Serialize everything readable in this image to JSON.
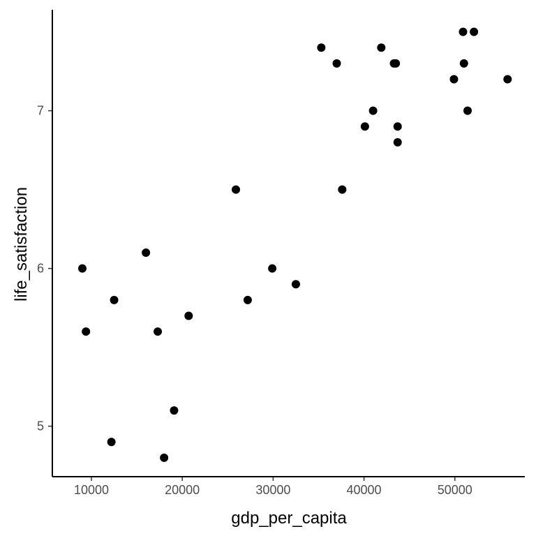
{
  "chart_data": {
    "type": "scatter",
    "xlabel": "gdp_per_capita",
    "ylabel": "life_satisfaction",
    "xlim": [
      5700,
      57700
    ],
    "ylim": [
      4.68,
      7.64
    ],
    "xticks": [
      10000,
      20000,
      30000,
      40000,
      50000
    ],
    "xtick_labels": [
      "10000",
      "20000",
      "30000",
      "40000",
      "50000"
    ],
    "yticks": [
      5,
      6,
      7
    ],
    "ytick_labels": [
      "5",
      "6",
      "7"
    ],
    "grid": false,
    "legend": "none",
    "point_color": "#000000",
    "points": [
      {
        "x": 9000,
        "y": 6.0
      },
      {
        "x": 9400,
        "y": 5.6
      },
      {
        "x": 12200,
        "y": 4.9
      },
      {
        "x": 12500,
        "y": 5.8
      },
      {
        "x": 16000,
        "y": 6.1
      },
      {
        "x": 17300,
        "y": 5.6
      },
      {
        "x": 18000,
        "y": 4.8
      },
      {
        "x": 19100,
        "y": 5.1
      },
      {
        "x": 20700,
        "y": 5.7
      },
      {
        "x": 25900,
        "y": 6.5
      },
      {
        "x": 27200,
        "y": 5.8
      },
      {
        "x": 29900,
        "y": 6.0
      },
      {
        "x": 32500,
        "y": 5.9
      },
      {
        "x": 35300,
        "y": 7.4
      },
      {
        "x": 37000,
        "y": 7.3
      },
      {
        "x": 37600,
        "y": 6.5
      },
      {
        "x": 40100,
        "y": 6.9
      },
      {
        "x": 41000,
        "y": 7.0
      },
      {
        "x": 41900,
        "y": 7.4
      },
      {
        "x": 43300,
        "y": 7.3
      },
      {
        "x": 43500,
        "y": 7.3
      },
      {
        "x": 43700,
        "y": 6.9
      },
      {
        "x": 43700,
        "y": 6.8
      },
      {
        "x": 49900,
        "y": 7.2
      },
      {
        "x": 50900,
        "y": 7.5
      },
      {
        "x": 51000,
        "y": 7.3
      },
      {
        "x": 51400,
        "y": 7.0
      },
      {
        "x": 52100,
        "y": 7.5
      },
      {
        "x": 55800,
        "y": 7.2
      }
    ]
  }
}
